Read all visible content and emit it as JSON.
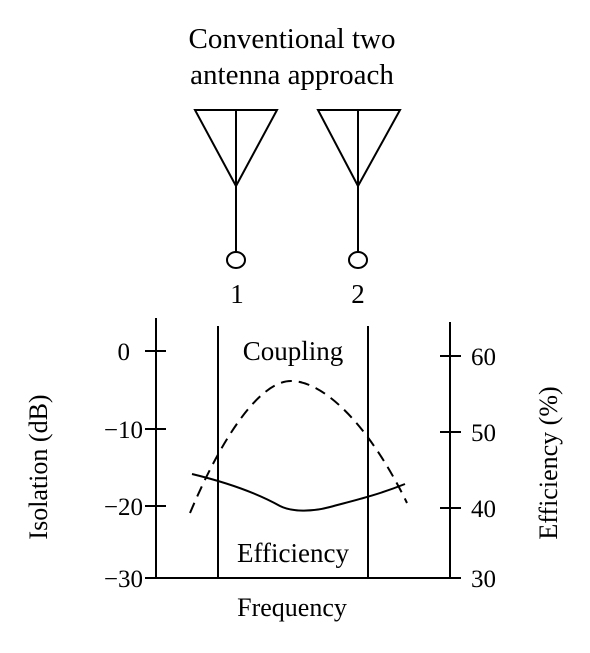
{
  "title_lines": [
    "Conventional two",
    "antenna approach"
  ],
  "antennas": [
    {
      "label": "1"
    },
    {
      "label": "2"
    }
  ],
  "chart": {
    "left_axis_label": "Isolation (dB)",
    "right_axis_label": "Efficiency (%)",
    "x_axis_label": "Frequency",
    "left_ticks": [
      "0",
      "−10",
      "−20",
      "−30"
    ],
    "right_ticks": [
      "60",
      "50",
      "40",
      "30"
    ],
    "region_labels": {
      "top": "Coupling",
      "bottom": "Efficiency"
    },
    "curves": {
      "coupling": {
        "style": "dashed",
        "axis": "left"
      },
      "efficiency": {
        "style": "solid",
        "axis": "right"
      }
    }
  }
}
